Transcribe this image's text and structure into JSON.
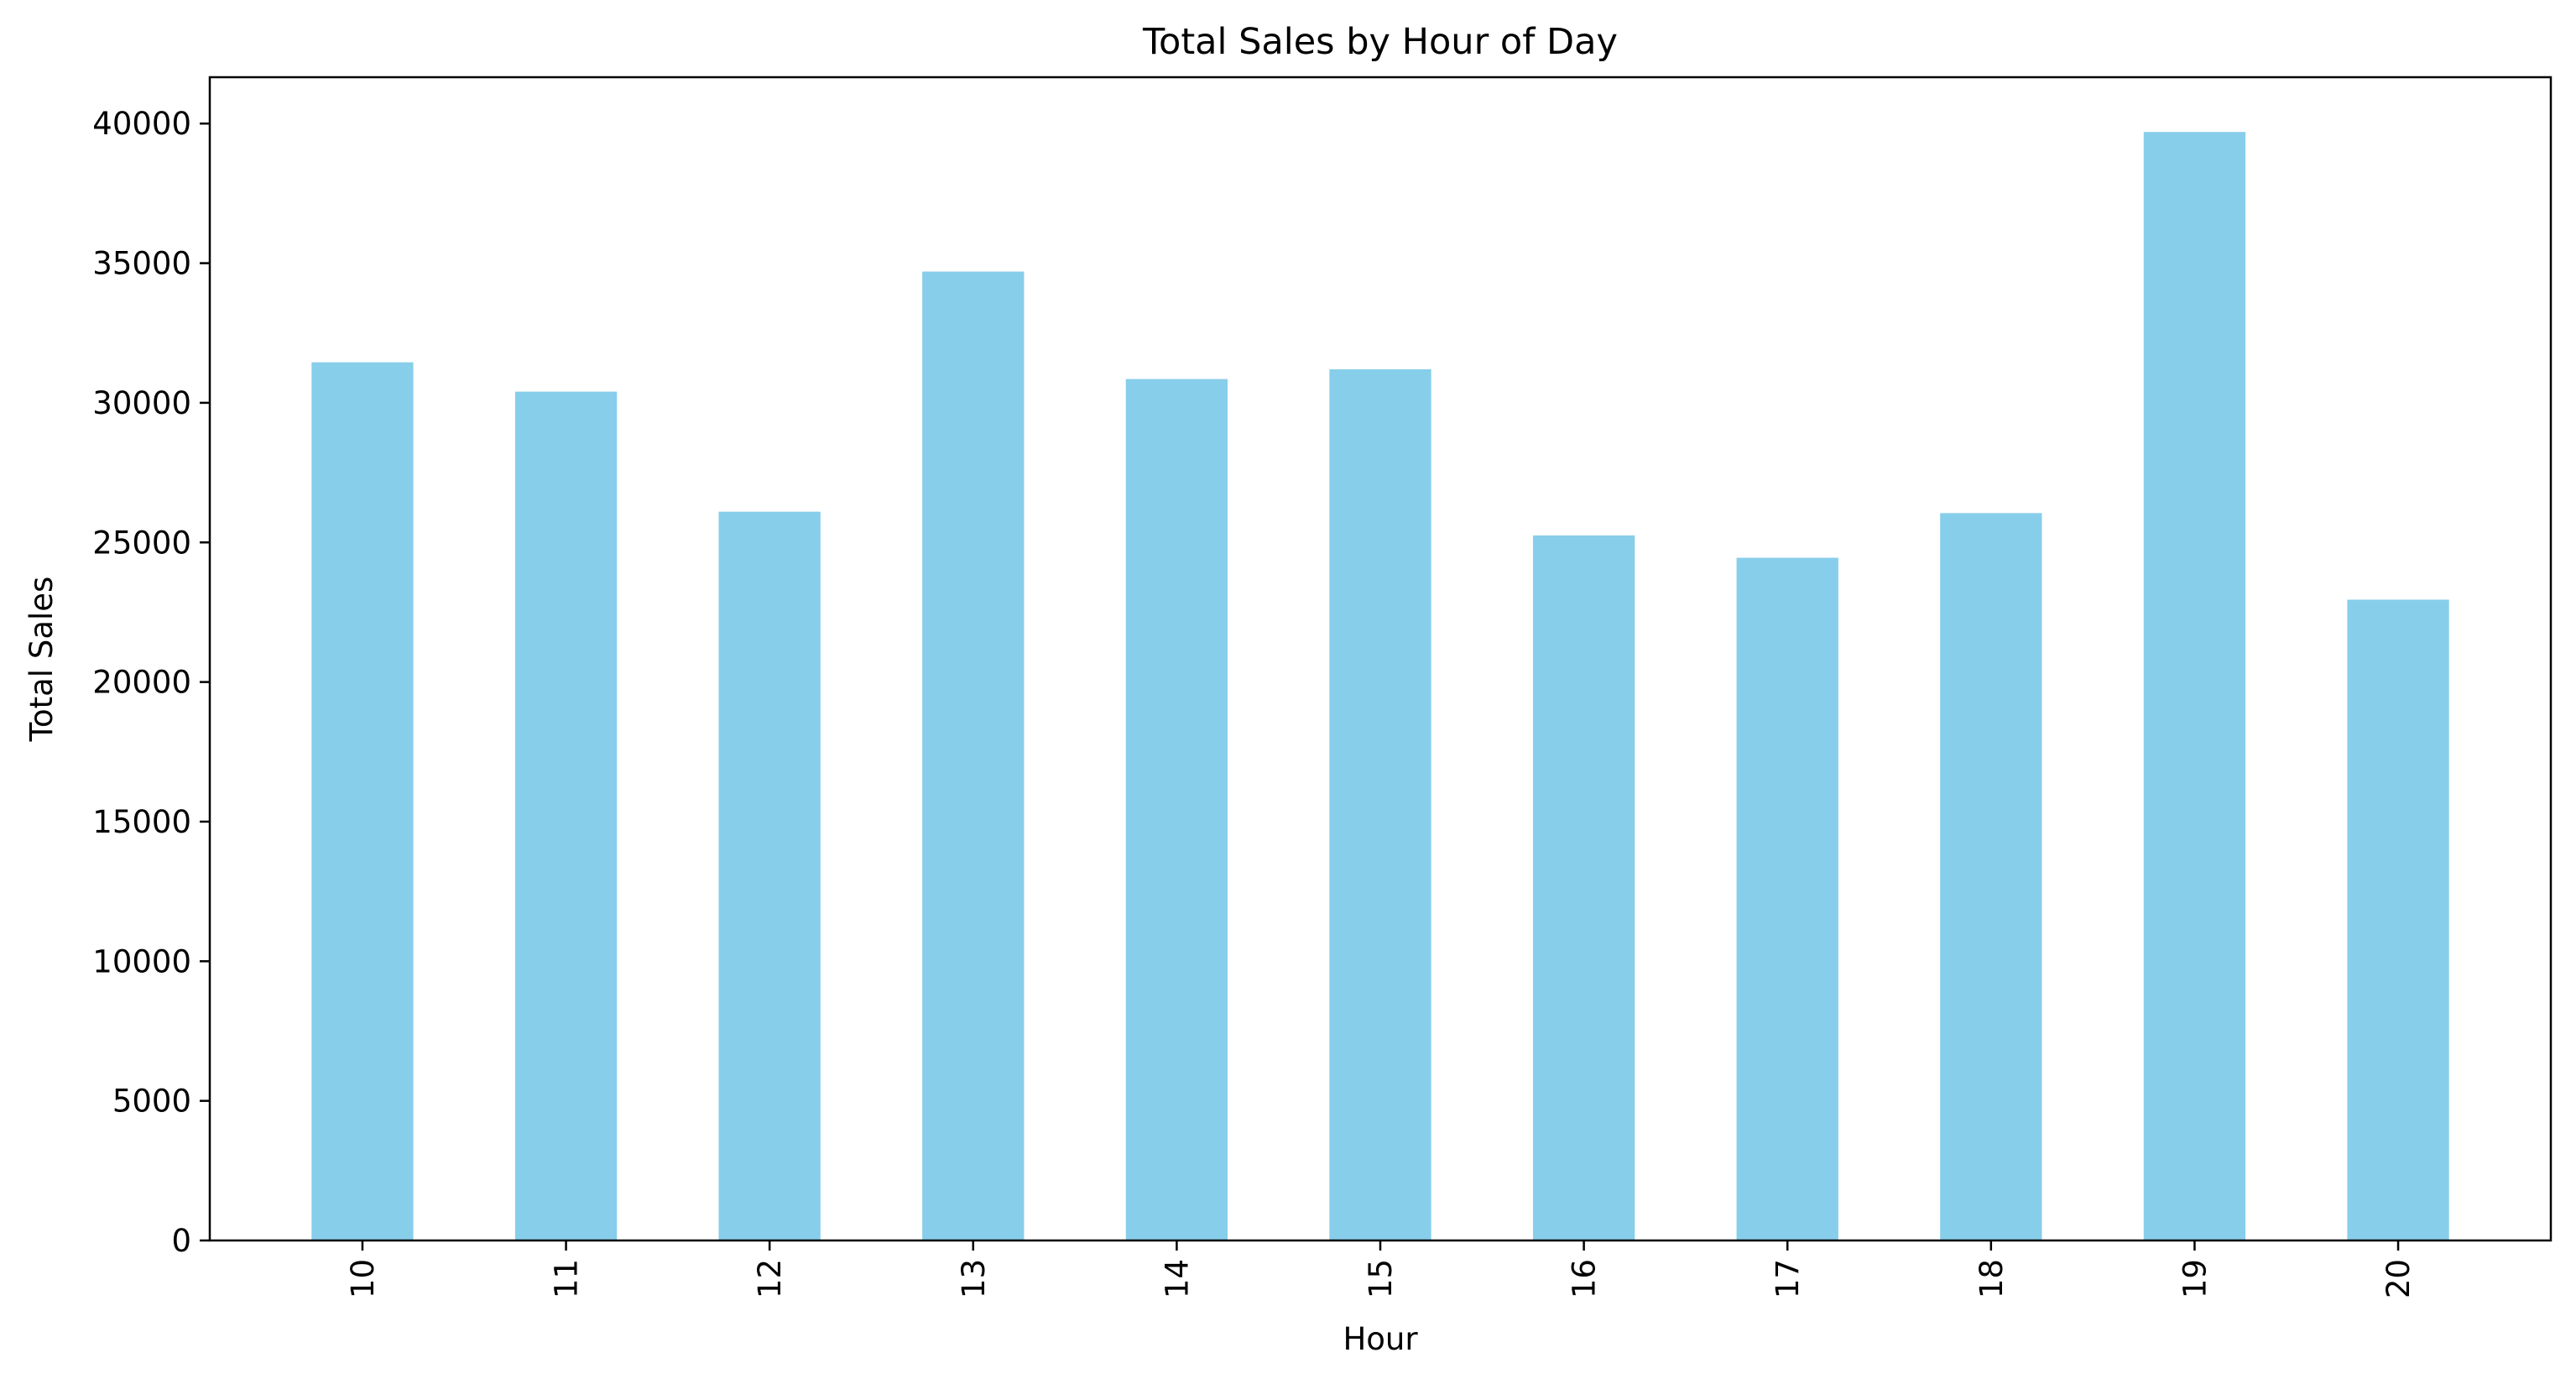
{
  "chart_data": {
    "type": "bar",
    "title": "Total Sales by Hour of Day",
    "xlabel": "Hour",
    "ylabel": "Total Sales",
    "categories": [
      "10",
      "11",
      "12",
      "13",
      "14",
      "15",
      "16",
      "17",
      "18",
      "19",
      "20"
    ],
    "values": [
      31450,
      30400,
      26100,
      34700,
      30850,
      31200,
      25250,
      24450,
      26050,
      39700,
      22950
    ],
    "ylim": [
      0,
      41660
    ],
    "yticks": [
      0,
      5000,
      10000,
      15000,
      20000,
      25000,
      30000,
      35000,
      40000
    ],
    "ytick_labels": [
      "0",
      "5000",
      "10000",
      "15000",
      "20000",
      "25000",
      "30000",
      "35000",
      "40000"
    ],
    "bar_color": "#87ceeb",
    "grid": false,
    "legend": "none",
    "xtick_rotation": "vertical"
  }
}
